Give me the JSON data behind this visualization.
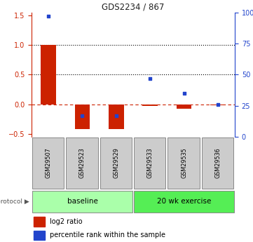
{
  "title": "GDS2234 / 867",
  "samples": [
    "GSM29507",
    "GSM29523",
    "GSM29529",
    "GSM29533",
    "GSM29535",
    "GSM29536"
  ],
  "log2_ratio": [
    1.0,
    -0.42,
    -0.42,
    -0.03,
    -0.07,
    -0.02
  ],
  "percentile_rank": [
    97,
    17,
    17,
    47,
    35,
    26
  ],
  "groups": [
    {
      "label": "baseline",
      "color": "#aaffaa",
      "start": 0,
      "end": 2
    },
    {
      "label": "20 wk exercise",
      "color": "#55ee55",
      "start": 3,
      "end": 5
    }
  ],
  "bar_color": "#cc2200",
  "dot_color": "#2244cc",
  "ylim_left": [
    -0.55,
    1.55
  ],
  "ylim_right": [
    0,
    100
  ],
  "yticks_left": [
    -0.5,
    0,
    0.5,
    1.0,
    1.5
  ],
  "yticks_right": [
    0,
    25,
    50,
    75,
    100
  ],
  "ytick_labels_right": [
    "0",
    "25",
    "50",
    "75",
    "100%"
  ],
  "dotted_lines": [
    1.0,
    0.5
  ],
  "legend_items": [
    "log2 ratio",
    "percentile rank within the sample"
  ],
  "background_color": "#ffffff",
  "label_box_color": "#cccccc",
  "label_box_edge": "#888888",
  "proto_edge": "#888888"
}
